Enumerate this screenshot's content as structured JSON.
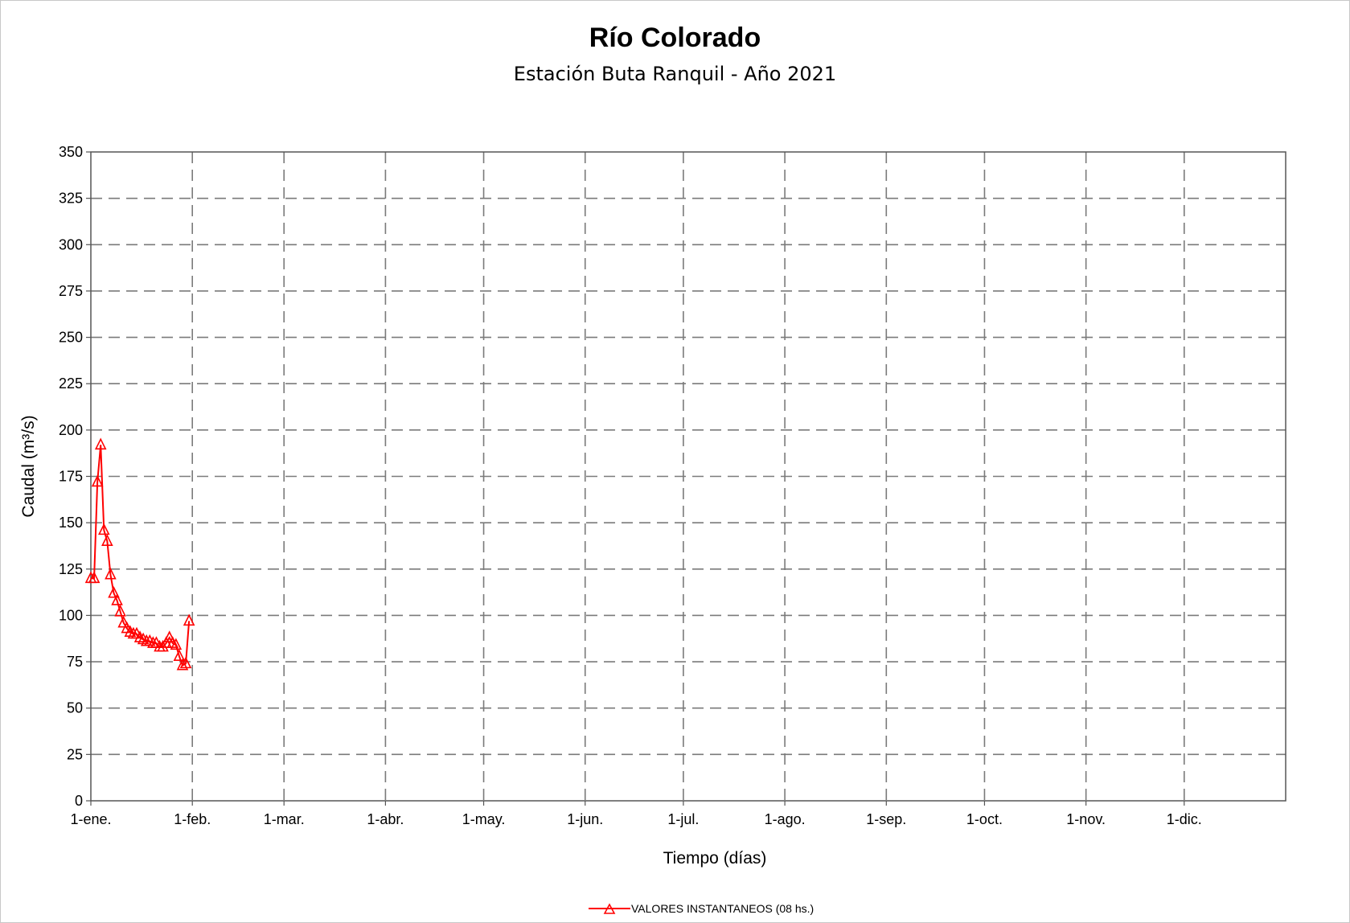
{
  "chart_data": {
    "type": "line",
    "title": "Río Colorado",
    "subtitle": "Estación Buta Ranquil - Año 2021",
    "xlabel": "Tiempo (días)",
    "ylabel": "Caudal (m³/s)",
    "ylim": [
      0,
      350
    ],
    "y_ticks": [
      0,
      25,
      50,
      75,
      100,
      125,
      150,
      175,
      200,
      225,
      250,
      275,
      300,
      325,
      350
    ],
    "x_tick_labels": [
      "1-ene.",
      "1-feb.",
      "1-mar.",
      "1-abr.",
      "1-may.",
      "1-jun.",
      "1-jul.",
      "1-ago.",
      "1-sep.",
      "1-oct.",
      "1-nov.",
      "1-dic."
    ],
    "x_tick_dates": [
      "2021-01-01",
      "2021-02-01",
      "2021-03-01",
      "2021-04-01",
      "2021-05-01",
      "2021-06-01",
      "2021-07-01",
      "2021-08-01",
      "2021-09-01",
      "2021-10-01",
      "2021-11-01",
      "2021-12-01"
    ],
    "xlim": [
      "2021-01-01",
      "2022-01-01"
    ],
    "grid": true,
    "legend_position": "bottom-center",
    "series": [
      {
        "name": "VALORES INSTANTANEOS (08 hs.)",
        "color": "#ff0000",
        "marker": "triangle-open",
        "x": [
          "2021-01-01",
          "2021-01-02",
          "2021-01-03",
          "2021-01-04",
          "2021-01-05",
          "2021-01-06",
          "2021-01-07",
          "2021-01-08",
          "2021-01-09",
          "2021-01-10",
          "2021-01-11",
          "2021-01-12",
          "2021-01-13",
          "2021-01-14",
          "2021-01-15",
          "2021-01-16",
          "2021-01-17",
          "2021-01-18",
          "2021-01-19",
          "2021-01-20",
          "2021-01-21",
          "2021-01-22",
          "2021-01-23",
          "2021-01-24",
          "2021-01-25",
          "2021-01-26",
          "2021-01-27",
          "2021-01-28",
          "2021-01-29",
          "2021-01-30",
          "2021-01-31"
        ],
        "values": [
          120,
          120,
          172,
          192,
          146,
          140,
          122,
          112,
          108,
          102,
          96,
          93,
          91,
          90,
          90,
          88,
          87,
          86,
          86,
          85,
          85,
          83,
          83,
          85,
          88,
          85,
          84,
          78,
          73,
          74,
          97
        ]
      }
    ]
  }
}
